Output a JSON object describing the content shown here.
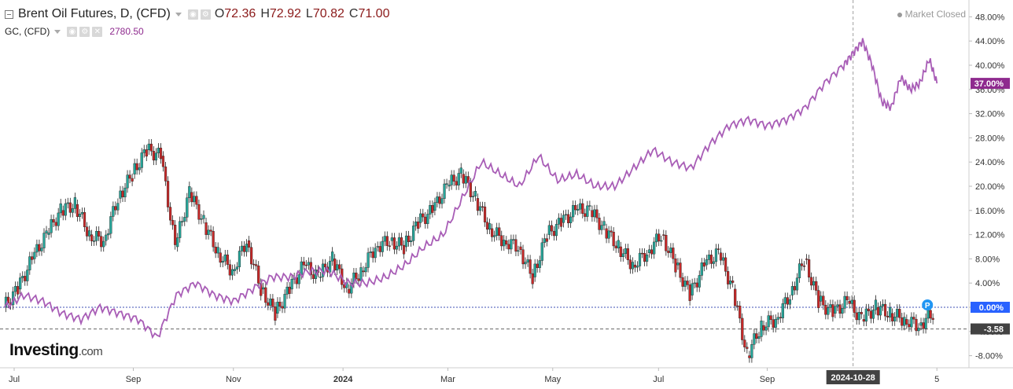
{
  "legend": {
    "main_symbol": "Brent Oil Futures, D, (CFD)",
    "open_key": "O",
    "open": "72.36",
    "high_key": "H",
    "high": "72.92",
    "low_key": "L",
    "low": "70.82",
    "close_key": "C",
    "close": "71.00",
    "sub_symbol": "GC, (CFD)",
    "sub_value": "2780.50"
  },
  "market_status": "Market Closed",
  "logo": {
    "name": "Investing",
    "suffix": ".com"
  },
  "colors": {
    "up": "#26a69a",
    "down": "#c62828",
    "gold_line": "#a85db6",
    "gold_badge": "#8e2a8e",
    "zero_line": "#3f51b5",
    "crosshair": "#9e9e9e"
  },
  "chart_data": {
    "type": "line",
    "title": "Brent Oil Futures, D, (CFD)",
    "y_axis": {
      "unit": "percent",
      "range": [
        -10,
        50
      ],
      "ticks": [
        "48.00%",
        "44.00%",
        "40.00%",
        "36.00%",
        "32.00%",
        "28.00%",
        "24.00%",
        "20.00%",
        "16.00%",
        "12.00%",
        "8.00%",
        "4.00%",
        "0.00%",
        "-4.00%",
        "-8.00%"
      ],
      "tick_values": [
        48,
        44,
        40,
        36,
        32,
        28,
        24,
        20,
        16,
        12,
        8,
        4,
        0,
        -4,
        -8
      ]
    },
    "x_axis": {
      "labels": [
        "Jul",
        "Sep",
        "Nov",
        "2024",
        "Mar",
        "May",
        "Jul",
        "Sep",
        "5"
      ],
      "label_positions": [
        0.0,
        0.125,
        0.23,
        0.345,
        0.455,
        0.565,
        0.676,
        0.79,
        0.968
      ],
      "range": [
        "2023-06-28",
        "2024-11-07"
      ]
    },
    "crosshair": {
      "x_label": "2024-10-28",
      "x_pos": 0.89
    },
    "badges": [
      {
        "label": "37.00%",
        "value": 37.0,
        "color": "#8e2a8e"
      },
      {
        "label": "0.00%",
        "value": 0.0,
        "color": "#2962ff"
      },
      {
        "label": "-3.58",
        "value": -3.58,
        "color": "#424242"
      }
    ],
    "marker": {
      "label": "P",
      "x_pos": 0.968,
      "value": 0.0
    },
    "series": [
      {
        "name": "Brent Oil Futures, D, (CFD)",
        "kind": "candlestick",
        "x": [
          0.0,
          0.015,
          0.03,
          0.045,
          0.06,
          0.075,
          0.09,
          0.105,
          0.12,
          0.135,
          0.15,
          0.165,
          0.18,
          0.195,
          0.21,
          0.225,
          0.24,
          0.255,
          0.27,
          0.285,
          0.3,
          0.315,
          0.33,
          0.345,
          0.36,
          0.375,
          0.39,
          0.405,
          0.42,
          0.435,
          0.45,
          0.465,
          0.48,
          0.495,
          0.51,
          0.525,
          0.54,
          0.555,
          0.57,
          0.585,
          0.6,
          0.615,
          0.63,
          0.645,
          0.66,
          0.675,
          0.69,
          0.705,
          0.72,
          0.735,
          0.75,
          0.765,
          0.78,
          0.795,
          0.81,
          0.825,
          0.84,
          0.855,
          0.87,
          0.885,
          0.9,
          0.915,
          0.93,
          0.945,
          0.96,
          0.975
        ],
        "values": [
          0,
          3,
          8,
          12,
          16,
          17,
          12,
          11,
          18,
          22,
          26,
          25,
          10,
          19,
          14,
          9,
          6,
          11,
          3,
          -1,
          3,
          7,
          5,
          8,
          3,
          6,
          10,
          11,
          10,
          14,
          16,
          20,
          22,
          18,
          13,
          11,
          10,
          5,
          12,
          14,
          16,
          16,
          13,
          10,
          7,
          9,
          12,
          7,
          2,
          7,
          9,
          3,
          -8,
          -3,
          -2,
          2,
          8,
          1,
          -1,
          1,
          -2,
          0,
          -1,
          -2,
          -3,
          -1
        ]
      },
      {
        "name": "GC, (CFD)",
        "kind": "line",
        "x": [
          0.0,
          0.02,
          0.04,
          0.06,
          0.08,
          0.1,
          0.12,
          0.14,
          0.16,
          0.18,
          0.2,
          0.22,
          0.24,
          0.26,
          0.28,
          0.3,
          0.32,
          0.34,
          0.36,
          0.38,
          0.4,
          0.42,
          0.44,
          0.46,
          0.48,
          0.5,
          0.52,
          0.54,
          0.56,
          0.58,
          0.6,
          0.62,
          0.64,
          0.66,
          0.68,
          0.7,
          0.72,
          0.74,
          0.76,
          0.78,
          0.8,
          0.82,
          0.84,
          0.86,
          0.88,
          0.89,
          0.9,
          0.91,
          0.92,
          0.93,
          0.94,
          0.95,
          0.96,
          0.97,
          0.978
        ],
        "values": [
          0,
          2,
          1,
          -1,
          -2,
          0,
          -1,
          -2,
          -5,
          2,
          4,
          2,
          1,
          3,
          5,
          5,
          6,
          6,
          4,
          4,
          5,
          7,
          10,
          12,
          18,
          24,
          22,
          20,
          25,
          21,
          22,
          20,
          20,
          23,
          26,
          24,
          23,
          27,
          30,
          31,
          30,
          31,
          33,
          37,
          40,
          42,
          44,
          40,
          34,
          33,
          38,
          36,
          37,
          41,
          37
        ]
      }
    ]
  }
}
